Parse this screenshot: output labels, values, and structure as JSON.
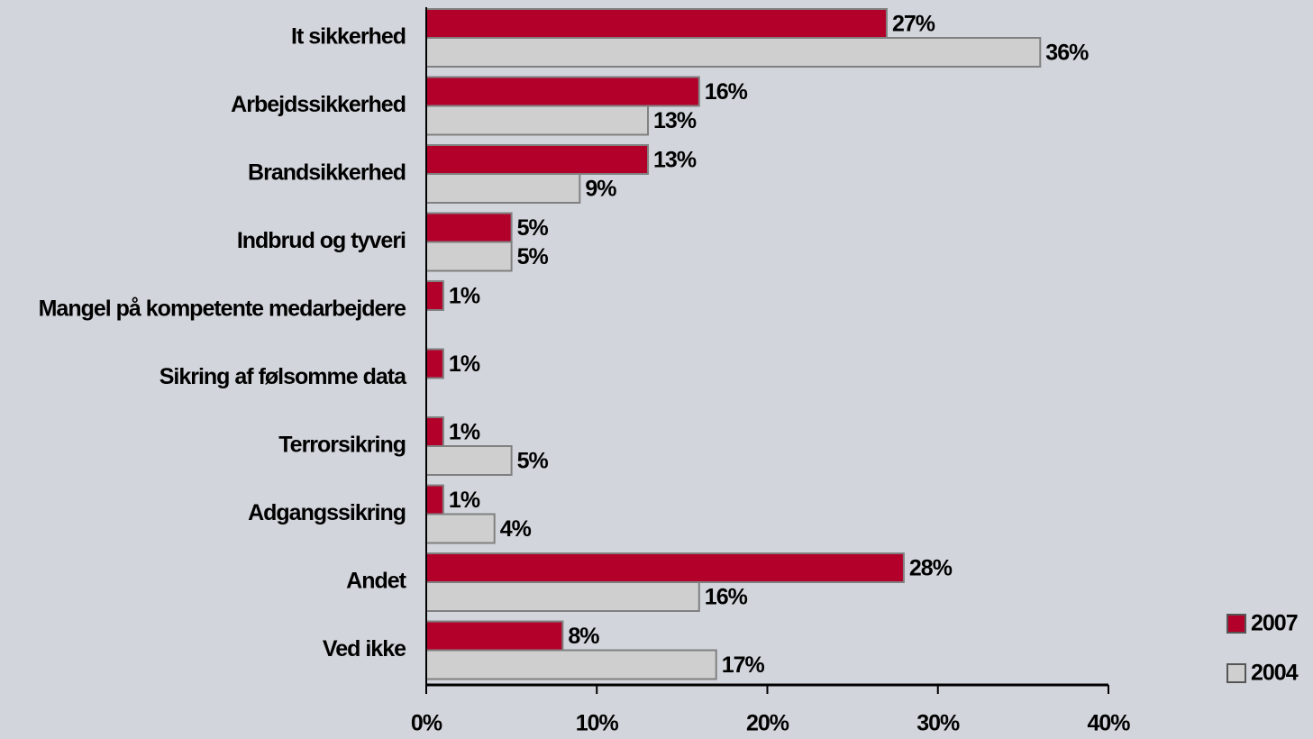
{
  "chart_data": {
    "type": "bar",
    "orientation": "horizontal",
    "categories": [
      "It sikkerhed",
      "Arbejdssikkerhed",
      "Brandsikkerhed",
      "Indbrud og tyveri",
      "Mangel på kompetente medarbejdere",
      "Sikring af følsomme data",
      "Terrorsikring",
      "Adgangssikring",
      "Andet",
      "Ved ikke"
    ],
    "series": [
      {
        "name": "2007",
        "color": "#b3002b",
        "values": [
          27,
          16,
          13,
          5,
          1,
          1,
          1,
          1,
          28,
          8
        ],
        "value_labels": [
          "27%",
          "16%",
          "13%",
          "5%",
          "1%",
          "1%",
          "1%",
          "1%",
          "28%",
          "8%"
        ]
      },
      {
        "name": "2004",
        "color": "#cfcfcf",
        "values": [
          36,
          13,
          9,
          5,
          null,
          null,
          5,
          4,
          16,
          17
        ],
        "value_labels": [
          "36%",
          "13%",
          "9%",
          "5%",
          null,
          null,
          "5%",
          "4%",
          "16%",
          "17%"
        ]
      }
    ],
    "xlim": [
      0,
      40
    ],
    "xticks": [
      {
        "value": 0,
        "label": "0%"
      },
      {
        "value": 10,
        "label": "10%"
      },
      {
        "value": 20,
        "label": "20%"
      },
      {
        "value": 30,
        "label": "30%"
      },
      {
        "value": 40,
        "label": "40%"
      }
    ],
    "legend": "right"
  }
}
